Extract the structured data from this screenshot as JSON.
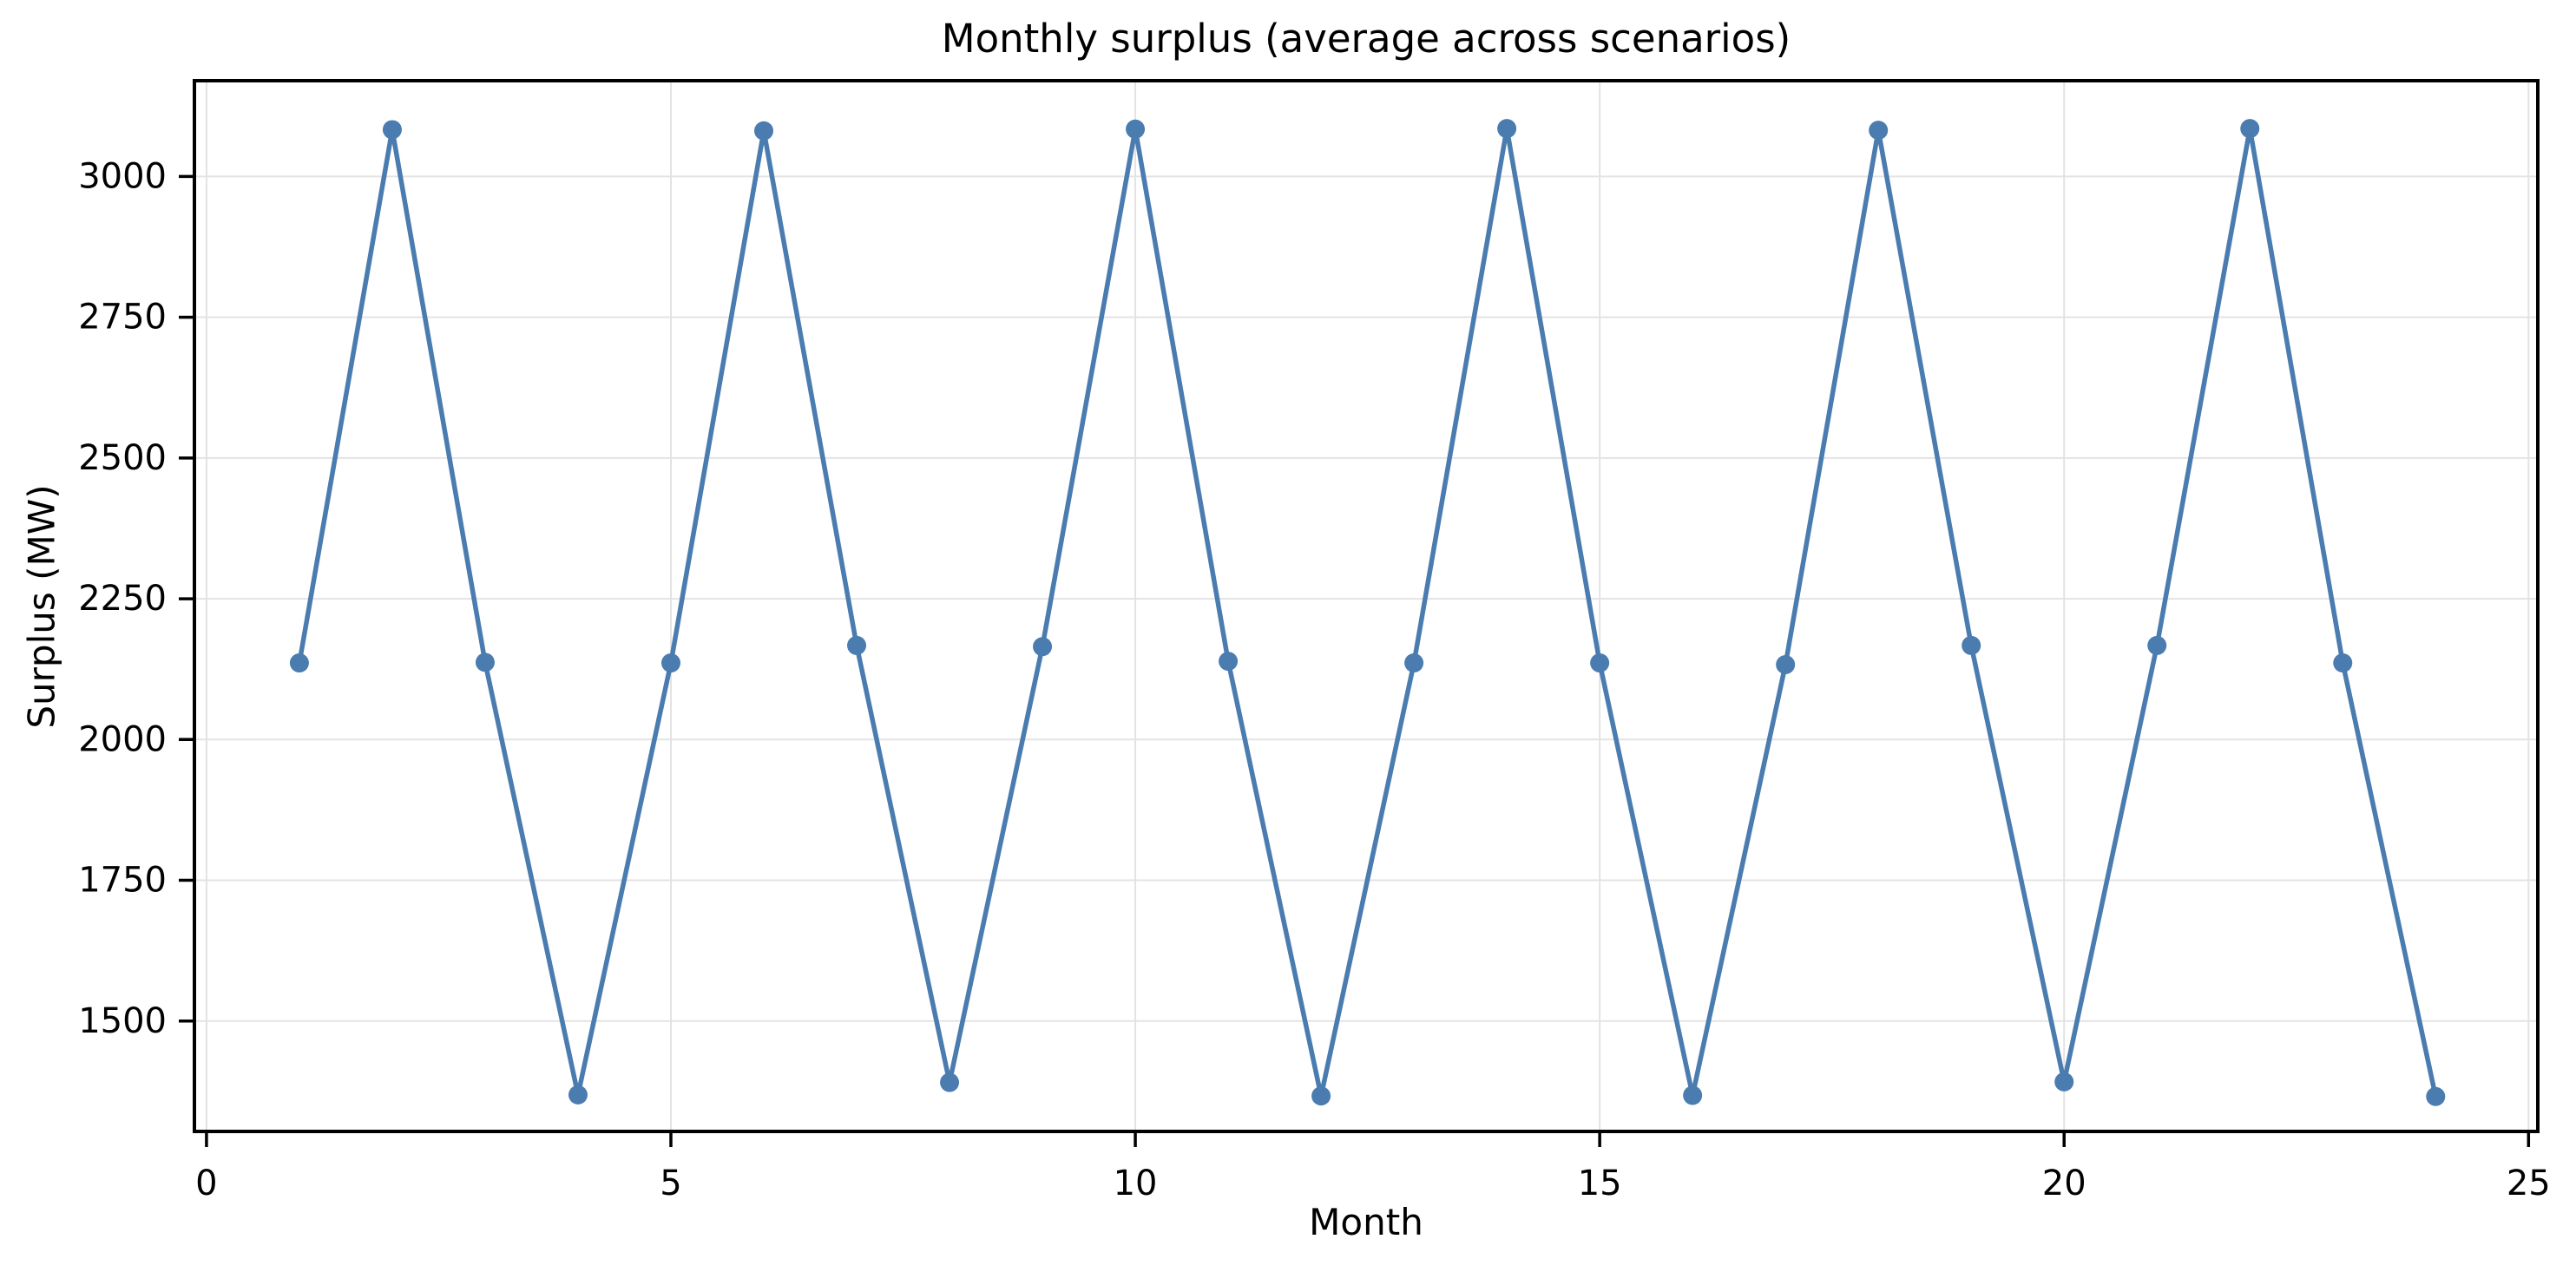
{
  "figure": {
    "background": "#ffffff"
  },
  "chart_data": {
    "type": "line",
    "title": "Monthly surplus (average across scenarios)",
    "xlabel": "Month",
    "ylabel": "Surplus (MW)",
    "series": [
      {
        "name": "Monthly surplus (average across scenarios)",
        "x": [
          1,
          2,
          3,
          4,
          5,
          6,
          7,
          8,
          9,
          10,
          11,
          12,
          13,
          14,
          15,
          16,
          17,
          18,
          19,
          20,
          21,
          22,
          23,
          24
        ],
        "values": [
          2136,
          3083,
          2137,
          1369,
          2136,
          3081,
          2167,
          1391,
          2165,
          3084,
          2139,
          1367,
          2136,
          3085,
          2136,
          1368,
          2133,
          3082,
          2167,
          1392,
          2167,
          3085,
          2136,
          1366
        ]
      }
    ],
    "xlim": [
      -0.13,
      25.1
    ],
    "ylim": [
      1304,
      3170
    ],
    "xticks": [
      0,
      5,
      10,
      15,
      20,
      25
    ],
    "yticks": [
      1500,
      1750,
      2000,
      2250,
      2500,
      2750,
      3000
    ],
    "grid": true,
    "legend": false,
    "line_color": "#4a7cb0",
    "grid_color": "#e3e3e3",
    "spine_color": "#000000",
    "marker": "circle"
  }
}
